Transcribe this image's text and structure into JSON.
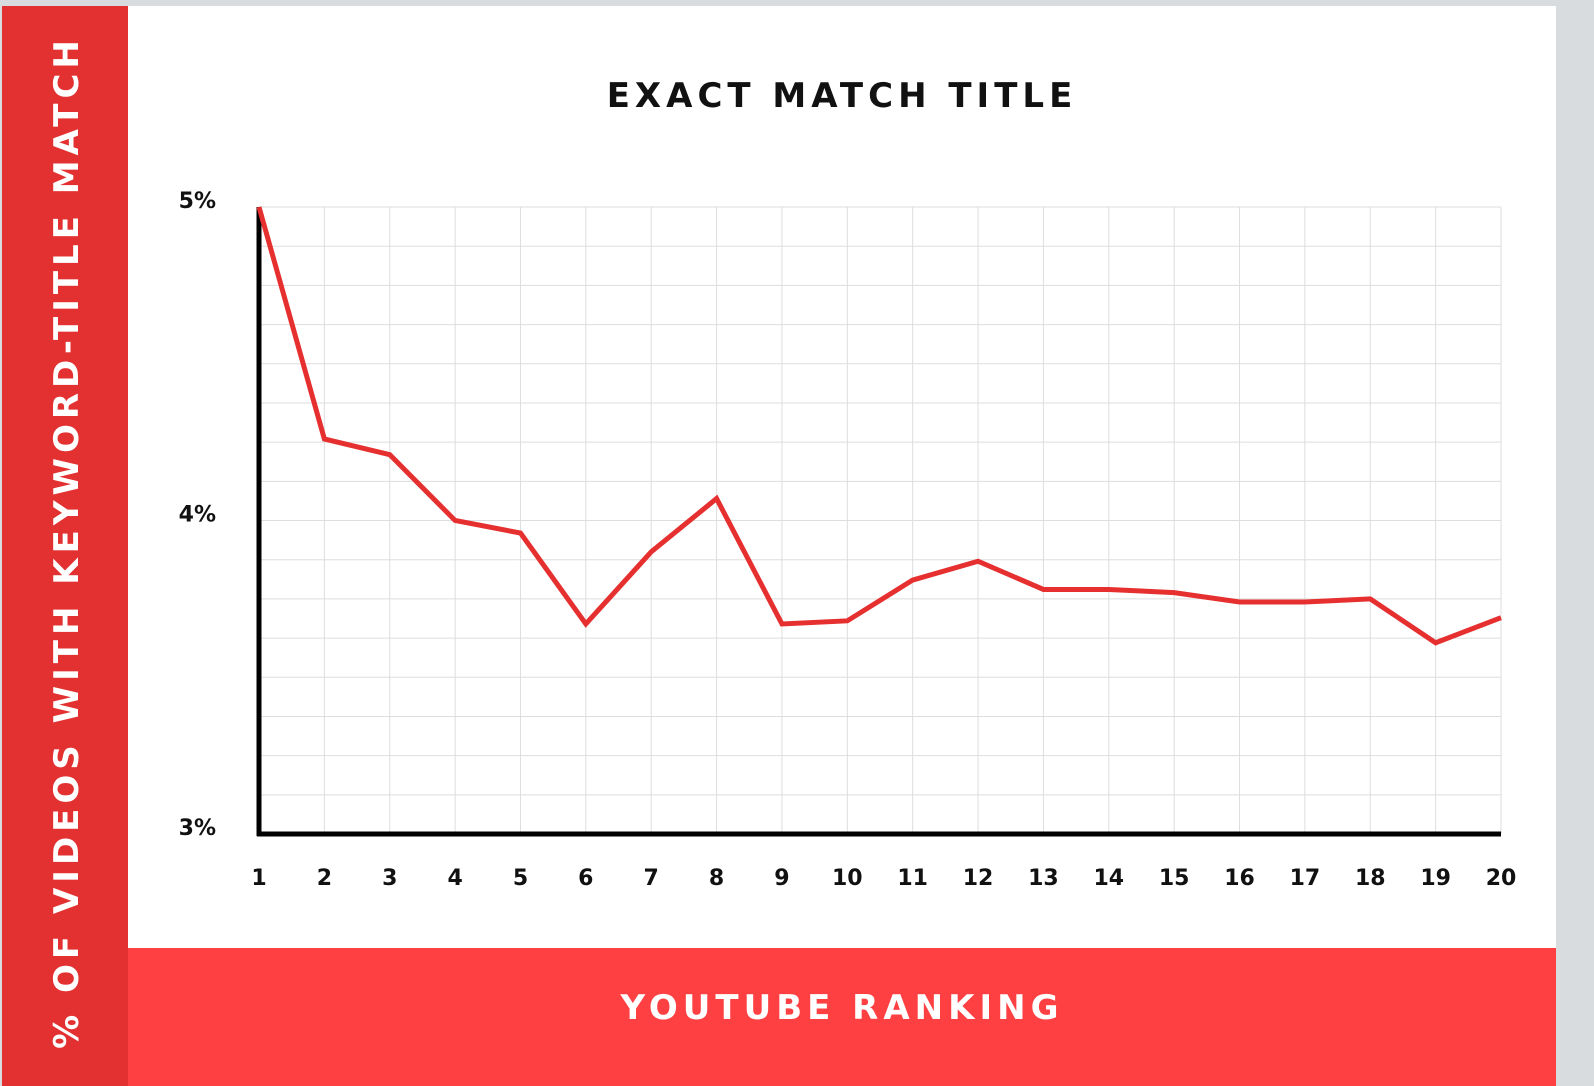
{
  "chart_data": {
    "type": "line",
    "title": "EXACT MATCH TITLE",
    "xlabel": "YOUTUBE RANKING",
    "ylabel": "% OF VIDEOS WITH KEYWORD-TITLE MATCH",
    "x": [
      1,
      2,
      3,
      4,
      5,
      6,
      7,
      8,
      9,
      10,
      11,
      12,
      13,
      14,
      15,
      16,
      17,
      18,
      19,
      20
    ],
    "series": [
      {
        "values": [
          5.0,
          4.26,
          4.21,
          4.0,
          3.96,
          3.67,
          3.9,
          4.07,
          3.67,
          3.68,
          3.81,
          3.87,
          3.78,
          3.78,
          3.77,
          3.74,
          3.74,
          3.75,
          3.61,
          3.69
        ],
        "color": "#e63030"
      }
    ],
    "ylim": [
      3,
      5
    ],
    "xlim": [
      1,
      20
    ],
    "yticks": [
      {
        "value": 3,
        "label": "3%"
      },
      {
        "value": 4,
        "label": "4%"
      },
      {
        "value": 5,
        "label": "5%"
      }
    ],
    "grid": true,
    "colors": {
      "sidebar": "#e33030",
      "bottom_bar": "#ff4043",
      "line": "#e63030",
      "grid": "#dddddd"
    }
  }
}
